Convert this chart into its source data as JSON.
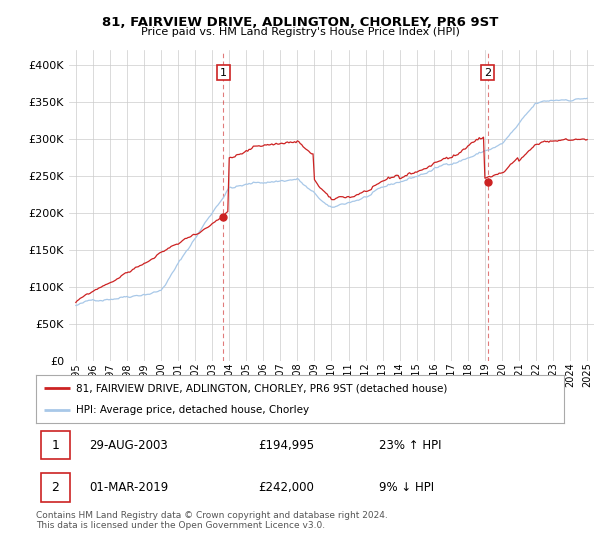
{
  "title": "81, FAIRVIEW DRIVE, ADLINGTON, CHORLEY, PR6 9ST",
  "subtitle": "Price paid vs. HM Land Registry's House Price Index (HPI)",
  "ylim": [
    0,
    420000
  ],
  "yticks": [
    0,
    50000,
    100000,
    150000,
    200000,
    250000,
    300000,
    350000,
    400000
  ],
  "year_start": 1995,
  "year_end": 2025,
  "hpi_color": "#a8c8e8",
  "price_color": "#cc2222",
  "vline_color": "#cc2222",
  "sale1_price": 194995,
  "sale1_year": 2003.66,
  "sale2_price": 242000,
  "sale2_year": 2019.16,
  "legend_line1": "81, FAIRVIEW DRIVE, ADLINGTON, CHORLEY, PR6 9ST (detached house)",
  "legend_line2": "HPI: Average price, detached house, Chorley",
  "table_row1_num": "1",
  "table_row1_date": "29-AUG-2003",
  "table_row1_price": "£194,995",
  "table_row1_hpi": "23% ↑ HPI",
  "table_row2_num": "2",
  "table_row2_date": "01-MAR-2019",
  "table_row2_price": "£242,000",
  "table_row2_hpi": "9% ↓ HPI",
  "footer": "Contains HM Land Registry data © Crown copyright and database right 2024.\nThis data is licensed under the Open Government Licence v3.0.",
  "bg_color": "#ffffff",
  "grid_color": "#cccccc"
}
